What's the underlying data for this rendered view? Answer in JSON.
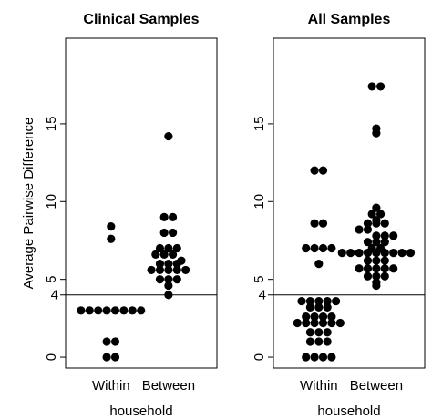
{
  "ylabel": "Average Pairwise Difference",
  "chart_data": [
    {
      "type": "scatter",
      "title": "Clinical Samples",
      "xlabel": "household",
      "ylabel": "Average Pairwise Difference",
      "categories": [
        "Within",
        "Between"
      ],
      "ylim": [
        -0.7,
        20.5
      ],
      "yticks": [
        0,
        5,
        10,
        15
      ],
      "hline": 4,
      "hline_label": "4",
      "grid": false,
      "series": [
        {
          "category": "Within",
          "values": [
            8.4,
            7.6,
            3.0,
            3.0,
            3.0,
            3.0,
            3.0,
            3.0,
            3.0,
            3.0,
            1.0,
            1.0,
            0.0,
            0.0
          ]
        },
        {
          "category": "Between",
          "values": [
            14.2,
            9.0,
            9.0,
            8.0,
            8.0,
            7.0,
            7.0,
            7.0,
            6.6,
            6.6,
            6.6,
            6.2,
            6.0,
            6.0,
            6.0,
            5.6,
            5.6,
            5.6,
            5.6,
            5.6,
            5.0,
            5.0,
            5.0,
            4.6,
            4.0
          ]
        }
      ]
    },
    {
      "type": "scatter",
      "title": "All Samples",
      "xlabel": "household",
      "categories": [
        "Within",
        "Between"
      ],
      "ylim": [
        -0.7,
        20.5
      ],
      "yticks": [
        0,
        5,
        10,
        15
      ],
      "hline": 4,
      "hline_label": "4",
      "grid": false,
      "series": [
        {
          "category": "Within",
          "values": [
            12.0,
            12.0,
            8.6,
            8.6,
            7.0,
            7.0,
            7.0,
            7.0,
            6.0,
            3.6,
            3.6,
            3.6,
            3.6,
            3.6,
            3.2,
            3.2,
            3.2,
            2.6,
            2.6,
            2.6,
            2.6,
            2.2,
            2.2,
            2.2,
            2.2,
            2.2,
            2.2,
            1.6,
            1.6,
            1.6,
            1.0,
            1.0,
            1.0,
            0.0,
            0.0,
            0.0,
            0.0
          ]
        },
        {
          "category": "Between",
          "values": [
            17.4,
            17.4,
            14.7,
            14.4,
            9.6,
            9.2,
            9.2,
            8.8,
            8.6,
            8.6,
            8.6,
            8.2,
            8.2,
            7.8,
            7.8,
            7.8,
            7.4,
            7.4,
            7.4,
            7.0,
            7.0,
            6.7,
            6.7,
            6.7,
            6.7,
            6.7,
            6.7,
            6.7,
            6.7,
            6.7,
            6.2,
            6.2,
            6.2,
            5.7,
            5.7,
            5.7,
            5.7,
            5.7,
            5.2,
            5.2,
            5.2,
            4.8,
            4.6
          ]
        }
      ]
    }
  ]
}
